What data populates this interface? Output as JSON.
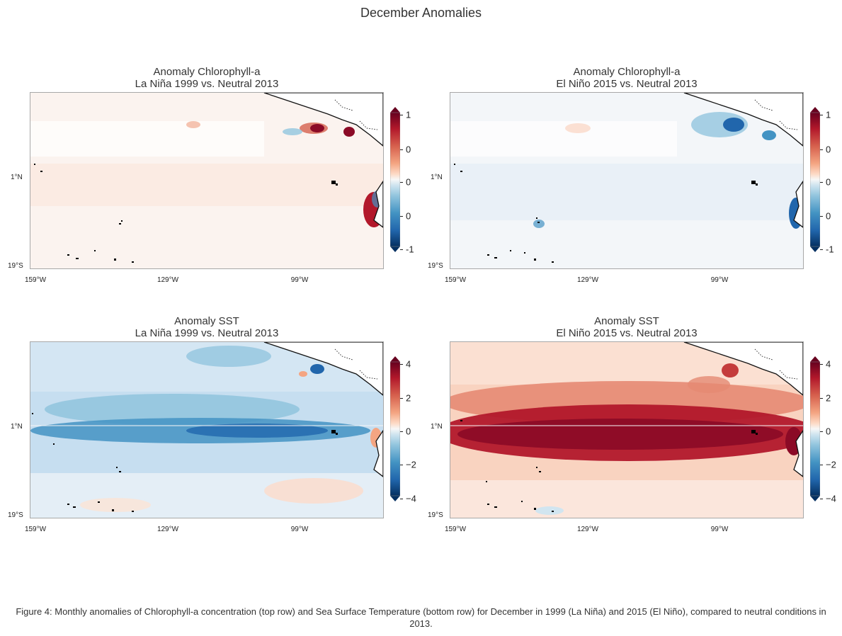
{
  "figure": {
    "title": "December Anomalies",
    "caption": "Figure 4: Monthly anomalies of Chlorophyll-a concentration (top row) and Sea Surface Temperature (bottom row) for December in 1999 (La Niña) and 2015 (El Niño), compared to neutral conditions in 2013."
  },
  "axes": {
    "lat_labels": [
      "1°N",
      "19°S"
    ],
    "lon_labels": [
      "159°W",
      "129°W",
      "99°W"
    ]
  },
  "colormap": {
    "name": "RdBu_r",
    "low": "#053061",
    "mid": "#f7f7f7",
    "high": "#67001f"
  },
  "panels": [
    {
      "title_line1": "Anomaly Chlorophyll-a",
      "title_line2": "La Niña 1999 vs. Neutral 2013",
      "variable": "chlorophyll",
      "colorbar_ticks": [
        "1",
        "0",
        "0",
        "0",
        "-1"
      ],
      "colorbar_range": [
        -1,
        1
      ],
      "pattern": "weak positive anomaly across basin, strong positive patches near Central American coast"
    },
    {
      "title_line1": "Anomaly Chlorophyll-a",
      "title_line2": "El Niño 2015 vs. Neutral 2013",
      "variable": "chlorophyll",
      "colorbar_ticks": [
        "1",
        "0",
        "0",
        "0",
        "-1"
      ],
      "colorbar_range": [
        -1,
        1
      ],
      "pattern": "weak negative anomaly across basin, strong negative near Central American coast"
    },
    {
      "title_line1": "Anomaly SST",
      "title_line2": "La Niña 1999 vs. Neutral 2013",
      "variable": "sst",
      "colorbar_ticks": [
        "4",
        "2",
        "0",
        "−2",
        "−4"
      ],
      "colorbar_range": [
        -4,
        4
      ],
      "pattern": "cool (negative) anomaly along the equatorial band"
    },
    {
      "title_line1": "Anomaly SST",
      "title_line2": "El Niño 2015 vs. Neutral 2013",
      "variable": "sst",
      "colorbar_ticks": [
        "4",
        "2",
        "0",
        "−2",
        "−4"
      ],
      "colorbar_range": [
        -4,
        4
      ],
      "pattern": "strong warm (positive) anomaly along the equatorial band"
    }
  ]
}
